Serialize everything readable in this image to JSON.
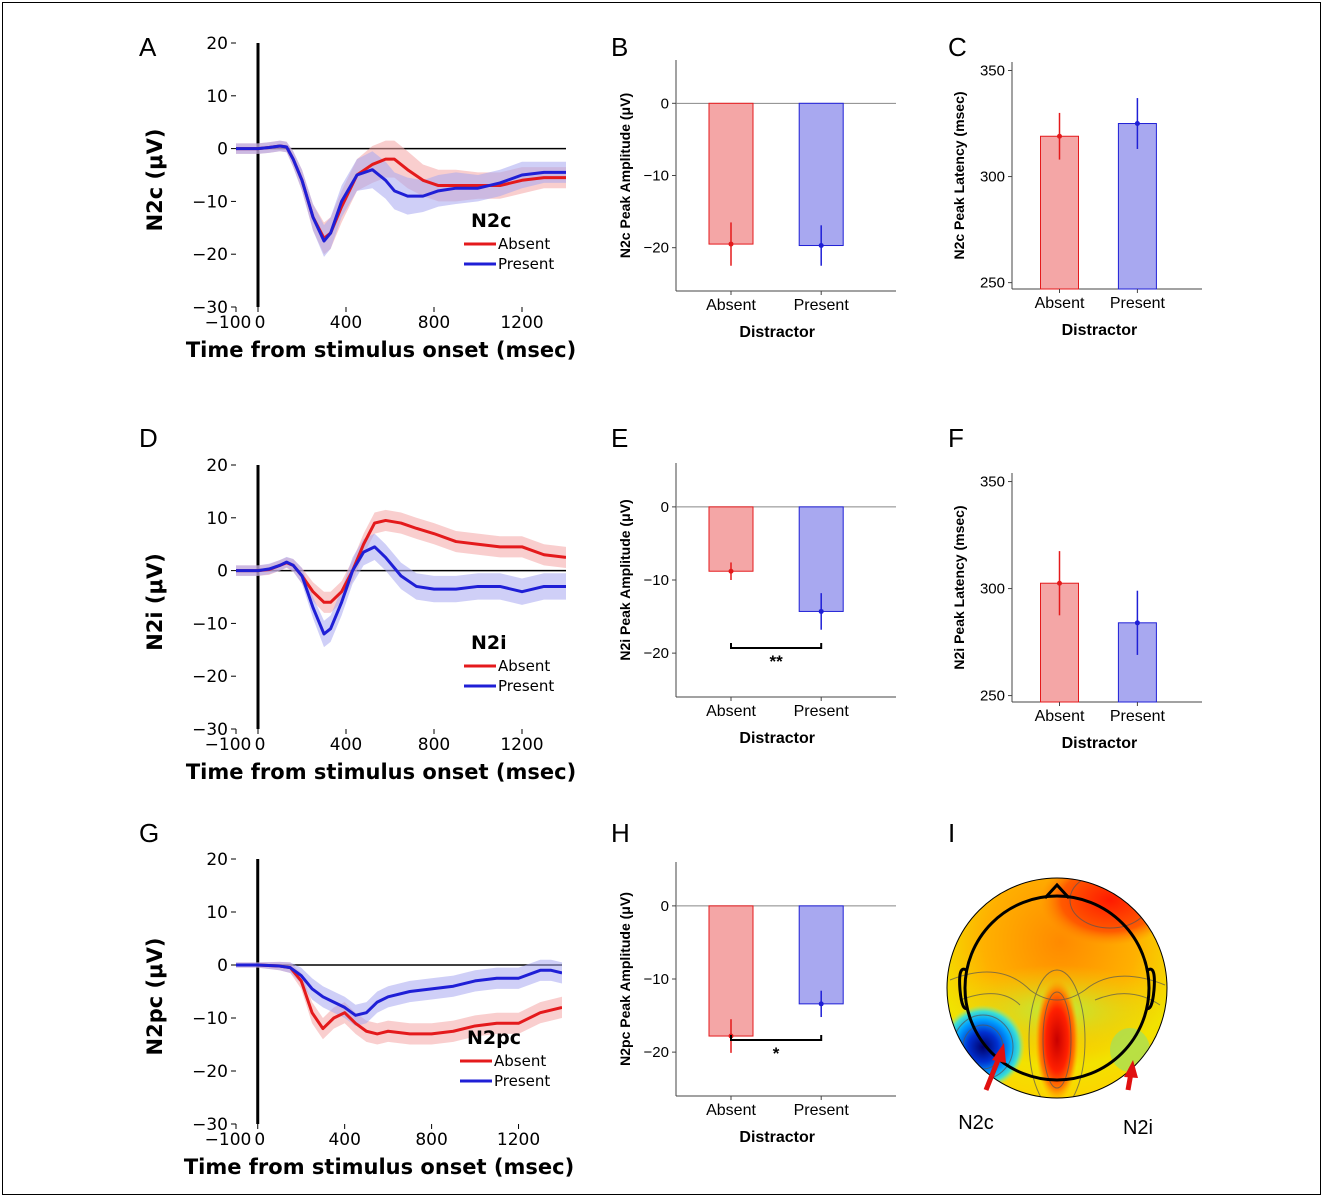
{
  "colors": {
    "absent": "#e41a1c",
    "present": "#1f1fd6",
    "absent_fill": "#f4a6a6",
    "present_fill": "#a8a8f0"
  },
  "panels": {
    "A": "A",
    "B": "B",
    "C": "C",
    "D": "D",
    "E": "E",
    "F": "F",
    "G": "G",
    "H": "H",
    "I": "I"
  },
  "topomap": {
    "label_left": "N2c",
    "label_right": "N2i"
  },
  "chart_data": [
    {
      "id": "A",
      "type": "line",
      "xlabel": "Time from stimulus onset (msec)",
      "ylabel": "N2c (μV)",
      "xlim": [
        -100,
        1400
      ],
      "ylim": [
        -30,
        20
      ],
      "xticks": [
        -100,
        0,
        400,
        800,
        1200
      ],
      "yticks": [
        20,
        10,
        0,
        -10,
        -20,
        -30
      ],
      "legend_title": "N2c",
      "legend_position": "lower-right",
      "series": [
        {
          "name": "Absent",
          "x": [
            -100,
            0,
            50,
            100,
            130,
            160,
            200,
            250,
            300,
            330,
            380,
            450,
            520,
            580,
            620,
            680,
            750,
            820,
            900,
            1000,
            1100,
            1200,
            1300,
            1400
          ],
          "y": [
            0,
            0,
            0.2,
            0.5,
            0.3,
            -2,
            -6,
            -13,
            -17,
            -16,
            -11,
            -5,
            -3,
            -2,
            -2,
            -4,
            -6,
            -7,
            -7,
            -7,
            -7,
            -6,
            -5.5,
            -5.5
          ],
          "band": [
            1,
            1,
            1,
            1,
            1,
            1.5,
            2,
            2.5,
            3,
            3,
            3,
            3,
            3.5,
            3.5,
            3.5,
            3.5,
            3,
            3,
            3,
            2.5,
            2.5,
            2.5,
            2,
            2
          ]
        },
        {
          "name": "Present",
          "x": [
            -100,
            0,
            50,
            100,
            130,
            160,
            200,
            250,
            300,
            330,
            380,
            450,
            520,
            580,
            620,
            680,
            750,
            820,
            900,
            1000,
            1100,
            1200,
            1300,
            1400
          ],
          "y": [
            0,
            0,
            0.2,
            0.5,
            0.3,
            -2,
            -6,
            -13,
            -17.5,
            -16,
            -10,
            -5,
            -4,
            -6,
            -8,
            -9,
            -9,
            -8,
            -7.5,
            -7.5,
            -6.5,
            -5,
            -4.5,
            -4.5
          ],
          "band": [
            1,
            1,
            1,
            1,
            1,
            1.5,
            2,
            2.5,
            3,
            3,
            3,
            3,
            3.5,
            3.5,
            3.5,
            3.5,
            3,
            3,
            3,
            2.5,
            2.5,
            2.5,
            2,
            2
          ]
        }
      ]
    },
    {
      "id": "B",
      "type": "bar",
      "categories": [
        "Absent",
        "Present"
      ],
      "values": [
        -19.5,
        -19.7
      ],
      "errors": [
        3,
        2.8
      ],
      "xlabel": "Distractor",
      "ylabel": "N2c Peak Amplitude (μV)",
      "ylim": [
        -26,
        6
      ],
      "yticks": [
        0,
        -10,
        -20
      ]
    },
    {
      "id": "C",
      "type": "bar",
      "categories": [
        "Absent",
        "Present"
      ],
      "values": [
        319,
        325
      ],
      "errors": [
        11,
        12
      ],
      "xlabel": "Distractor",
      "ylabel": "N2c Peak Latency (msec)",
      "ylim": [
        247,
        354
      ],
      "yticks": [
        350,
        300,
        250
      ]
    },
    {
      "id": "D",
      "type": "line",
      "xlabel": "Time from stimulus onset (msec)",
      "ylabel": "N2i (μV)",
      "xlim": [
        -100,
        1400
      ],
      "ylim": [
        -30,
        20
      ],
      "xticks": [
        -100,
        0,
        400,
        800,
        1200
      ],
      "yticks": [
        20,
        10,
        0,
        -10,
        -20,
        -30
      ],
      "legend_title": "N2i",
      "legend_position": "lower-right",
      "series": [
        {
          "name": "Absent",
          "x": [
            -100,
            0,
            50,
            100,
            130,
            160,
            200,
            250,
            300,
            330,
            380,
            430,
            480,
            530,
            580,
            650,
            720,
            800,
            900,
            1000,
            1100,
            1200,
            1300,
            1400
          ],
          "y": [
            0,
            0,
            0.2,
            1,
            1.5,
            1,
            -1,
            -4,
            -6,
            -6,
            -4,
            0,
            5,
            9,
            9.5,
            9,
            8,
            7,
            5.5,
            5,
            4.5,
            4.5,
            3,
            2.5
          ],
          "band": [
            1,
            1,
            1,
            1,
            1,
            1.2,
            1.5,
            1.8,
            2,
            2,
            2,
            2,
            2,
            2,
            2,
            2,
            2,
            2,
            2,
            2,
            2,
            2,
            2,
            2
          ]
        },
        {
          "name": "Present",
          "x": [
            -100,
            0,
            50,
            100,
            130,
            160,
            200,
            250,
            300,
            330,
            380,
            430,
            480,
            530,
            580,
            650,
            720,
            800,
            900,
            1000,
            1100,
            1200,
            1300,
            1400
          ],
          "y": [
            0,
            0,
            0.3,
            1,
            1.6,
            1,
            -1,
            -7,
            -12,
            -11,
            -6,
            0,
            3.5,
            4.5,
            2.5,
            -1,
            -3,
            -3.5,
            -3.5,
            -3,
            -3,
            -4,
            -3,
            -3
          ],
          "band": [
            1,
            1,
            1,
            1,
            1,
            1.2,
            1.5,
            2,
            2.5,
            2.5,
            2.5,
            2.5,
            2.5,
            2.5,
            2.5,
            2.5,
            2.5,
            2.5,
            2.5,
            2.5,
            2.5,
            2.5,
            2.5,
            2.5
          ]
        }
      ]
    },
    {
      "id": "E",
      "type": "bar",
      "categories": [
        "Absent",
        "Present"
      ],
      "values": [
        -8.8,
        -14.3
      ],
      "errors": [
        1.2,
        2.5
      ],
      "xlabel": "Distractor",
      "ylabel": "N2i Peak Amplitude (μV)",
      "ylim": [
        -26,
        6
      ],
      "yticks": [
        0,
        -10,
        -20
      ],
      "significance": "**"
    },
    {
      "id": "F",
      "type": "bar",
      "categories": [
        "Absent",
        "Present"
      ],
      "values": [
        302.5,
        284
      ],
      "errors": [
        15,
        15
      ],
      "xlabel": "Distractor",
      "ylabel": "N2i Peak Latency (msec)",
      "ylim": [
        247,
        354
      ],
      "yticks": [
        350,
        300,
        250
      ]
    },
    {
      "id": "G",
      "type": "line",
      "xlabel": "Time from stimulus onset (msec)",
      "ylabel": "N2pc (μV)",
      "xlim": [
        -100,
        1400
      ],
      "ylim": [
        -30,
        20
      ],
      "xticks": [
        -100,
        0,
        400,
        800,
        1200
      ],
      "yticks": [
        20,
        10,
        0,
        -10,
        -20,
        -30
      ],
      "legend_title": "N2pc",
      "legend_position": "lower-right",
      "series": [
        {
          "name": "Absent",
          "x": [
            -100,
            0,
            100,
            150,
            200,
            250,
            300,
            350,
            400,
            450,
            500,
            550,
            600,
            700,
            800,
            900,
            1000,
            1100,
            1200,
            1300,
            1400
          ],
          "y": [
            0,
            0,
            -0.2,
            -0.5,
            -3,
            -9,
            -12,
            -10,
            -9,
            -11,
            -12.5,
            -13,
            -12.5,
            -13,
            -13,
            -12.5,
            -11.5,
            -11,
            -11,
            -9,
            -8
          ],
          "band": [
            0.5,
            0.5,
            0.8,
            1,
            1.5,
            2,
            2,
            2,
            2,
            2,
            2,
            2,
            2,
            2,
            2,
            2,
            2,
            2,
            2,
            2,
            2
          ]
        },
        {
          "name": "Present",
          "x": [
            -100,
            0,
            100,
            150,
            200,
            250,
            300,
            350,
            400,
            450,
            500,
            550,
            600,
            700,
            800,
            900,
            1000,
            1100,
            1200,
            1300,
            1350,
            1400
          ],
          "y": [
            0,
            0,
            -0.2,
            -0.5,
            -2,
            -4.5,
            -6,
            -7,
            -8,
            -9.5,
            -9,
            -7,
            -6,
            -5,
            -4.5,
            -4,
            -3,
            -2.5,
            -2.5,
            -1,
            -1,
            -1.5
          ],
          "band": [
            0.5,
            0.5,
            0.8,
            1,
            1.5,
            2,
            2,
            2,
            2,
            2,
            2,
            2,
            2,
            2,
            2,
            2,
            2,
            2,
            2,
            2,
            2,
            2
          ]
        }
      ]
    },
    {
      "id": "H",
      "type": "bar",
      "categories": [
        "Absent",
        "Present"
      ],
      "values": [
        -17.8,
        -13.4
      ],
      "errors": [
        2.3,
        1.8
      ],
      "xlabel": "Distractor",
      "ylabel": "N2pc Peak Amplitude (μV)",
      "ylim": [
        -26,
        6
      ],
      "yticks": [
        0,
        -10,
        -20
      ],
      "significance": "*"
    }
  ]
}
